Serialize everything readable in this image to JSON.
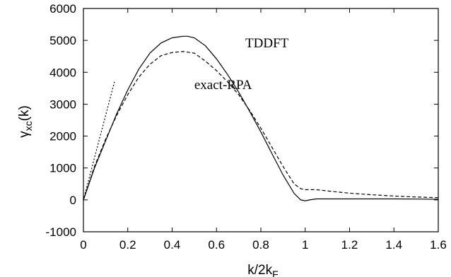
{
  "chart_data": {
    "type": "line",
    "xlabel": "k/2k",
    "xlabel_sub": "F",
    "ylabel": "γ",
    "ylabel_sub": "xc",
    "ylabel_suffix": "(k)",
    "xlim": [
      0,
      1.6
    ],
    "ylim": [
      -1000,
      6000
    ],
    "xticks": [
      0,
      0.2,
      0.4,
      0.6,
      0.8,
      1,
      1.2,
      1.4,
      1.6
    ],
    "xtick_labels": [
      "0",
      "0.2",
      "0.4",
      "0.6",
      "0.8",
      "1",
      "1.2",
      "1.4",
      "1.6"
    ],
    "yticks": [
      -1000,
      0,
      1000,
      2000,
      3000,
      4000,
      5000,
      6000
    ],
    "ytick_labels": [
      "-1000",
      "0",
      "1000",
      "2000",
      "3000",
      "4000",
      "5000",
      "6000"
    ],
    "grid": false,
    "series": [
      {
        "name": "TDDFT",
        "style": "solid",
        "x": [
          0,
          0.05,
          0.1,
          0.15,
          0.2,
          0.25,
          0.3,
          0.35,
          0.4,
          0.45,
          0.47,
          0.5,
          0.55,
          0.6,
          0.65,
          0.7,
          0.75,
          0.8,
          0.85,
          0.9,
          0.95,
          0.98,
          1.0,
          1.02,
          1.05,
          1.1,
          1.2,
          1.3,
          1.4,
          1.5,
          1.6
        ],
        "y": [
          0,
          1000,
          1850,
          2700,
          3450,
          4100,
          4600,
          4920,
          5080,
          5130,
          5130,
          5080,
          4830,
          4420,
          3930,
          3380,
          2770,
          2130,
          1450,
          780,
          200,
          0,
          -30,
          0,
          30,
          30,
          30,
          30,
          30,
          25,
          20
        ]
      },
      {
        "name": "exact-RPA",
        "style": "dashed",
        "x": [
          0,
          0.05,
          0.1,
          0.15,
          0.2,
          0.25,
          0.3,
          0.35,
          0.4,
          0.45,
          0.5,
          0.55,
          0.6,
          0.65,
          0.7,
          0.75,
          0.8,
          0.85,
          0.9,
          0.95,
          0.98,
          1.0,
          1.05,
          1.1,
          1.2,
          1.3,
          1.4,
          1.5,
          1.6
        ],
        "y": [
          0,
          1050,
          1900,
          2650,
          3300,
          3850,
          4250,
          4520,
          4620,
          4650,
          4600,
          4350,
          4050,
          3700,
          3300,
          2800,
          2250,
          1650,
          1050,
          500,
          350,
          320,
          320,
          280,
          210,
          160,
          120,
          90,
          70
        ]
      },
      {
        "name": "",
        "style": "dotted",
        "x": [
          0,
          0.14
        ],
        "y": [
          0,
          3700
        ]
      }
    ],
    "annotations": [
      {
        "text": "TDDFT",
        "x": 0.73,
        "y": 4780
      },
      {
        "text": "exact-RPA",
        "x": 0.5,
        "y": 3470
      }
    ]
  }
}
